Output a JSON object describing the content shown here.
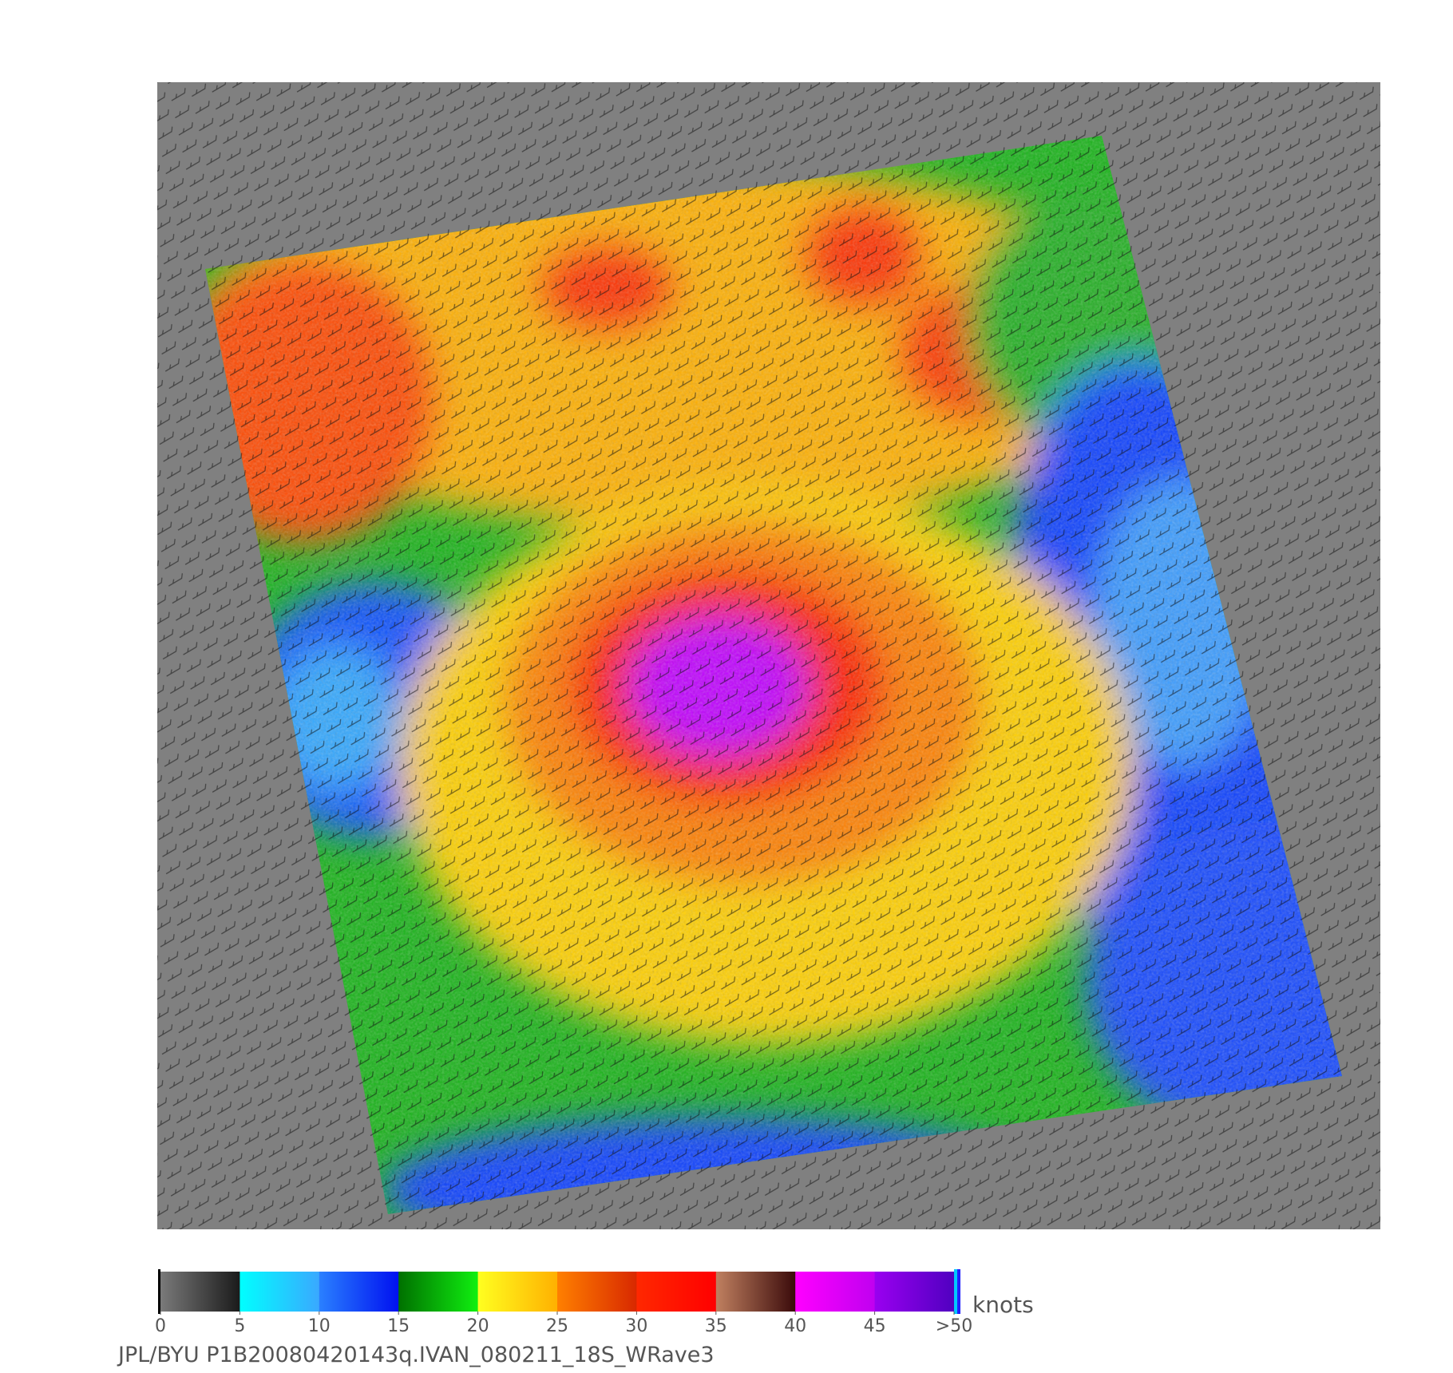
{
  "colorbar": {
    "unit": "knots",
    "range": [
      0,
      50
    ],
    "ticks": [
      0,
      5,
      10,
      15,
      20,
      25,
      30,
      35,
      40,
      45,
      {
        "value": 50,
        "label": ">50"
      }
    ],
    "bands": [
      [
        "#7a7a7a",
        "#1a1a1a"
      ],
      [
        "#00ffff",
        "#3aa8ff"
      ],
      [
        "#2a80ff",
        "#0010f0"
      ],
      [
        "#007000",
        "#10f010"
      ],
      [
        "#ffff20",
        "#ffb000"
      ],
      [
        "#ff8000",
        "#d82800"
      ],
      [
        "#ff2800",
        "#ff0000"
      ],
      [
        "#c08060",
        "#3a0a0a"
      ],
      [
        "#ff00ff",
        "#c000f0"
      ],
      [
        "#9a00f0",
        "#5000c0"
      ]
    ]
  },
  "caption": "JPL/BYU  P1B20080420143q.IVAN_080211_18S_WRave3"
}
